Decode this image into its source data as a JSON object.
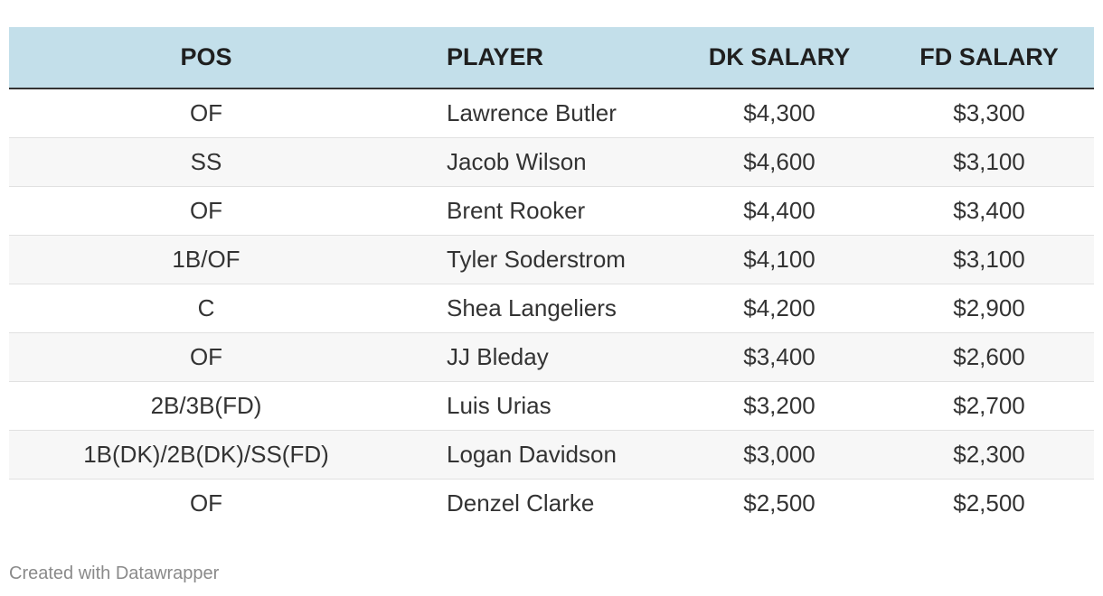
{
  "chart_data": {
    "type": "table",
    "columns": [
      "POS",
      "PLAYER",
      "DK SALARY",
      "FD SALARY"
    ],
    "rows": [
      [
        "OF",
        "Lawrence Butler",
        "$4,300",
        "$3,300"
      ],
      [
        "SS",
        "Jacob Wilson",
        "$4,600",
        "$3,100"
      ],
      [
        "OF",
        "Brent Rooker",
        "$4,400",
        "$3,400"
      ],
      [
        "1B/OF",
        "Tyler Soderstrom",
        "$4,100",
        "$3,100"
      ],
      [
        "C",
        "Shea Langeliers",
        "$4,200",
        "$2,900"
      ],
      [
        "OF",
        "JJ Bleday",
        "$3,400",
        "$2,600"
      ],
      [
        "2B/3B(FD)",
        "Luis Urias",
        "$3,200",
        "$2,700"
      ],
      [
        "1B(DK)/2B(DK)/SS(FD)",
        "Logan Davidson",
        "$3,000",
        "$2,300"
      ],
      [
        "OF",
        "Denzel Clarke",
        "$2,500",
        "$2,500"
      ]
    ]
  },
  "footer": {
    "credit": "Created with Datawrapper"
  },
  "colors": {
    "header_bg": "#c3dfea",
    "stripe_bg": "#f7f7f7",
    "text": "#333333",
    "credit_text": "#8a8a8a"
  }
}
